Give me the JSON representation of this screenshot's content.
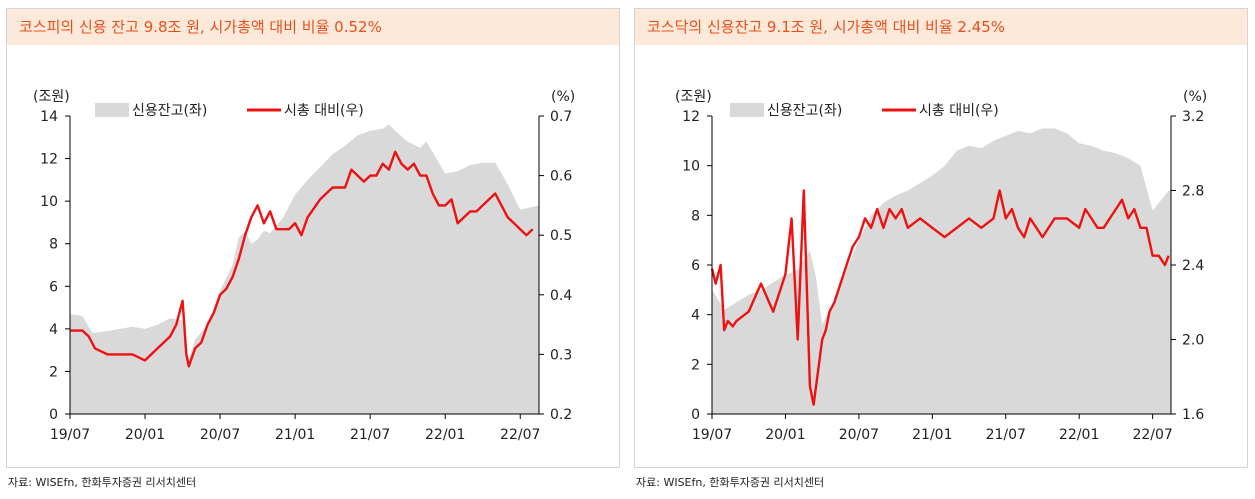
{
  "colors": {
    "title_text": "#e8501b",
    "title_bg": "#fde9da",
    "area_fill": "#d9d9d9",
    "line": "#ee1111",
    "axis": "#000000"
  },
  "chart_data": [
    {
      "type": "area+line",
      "title": "코스피의 신용 잔고 9.8조 원, 시가총액 대비 비율 0.52%",
      "left_unit": "(조원)",
      "right_unit": "(%)",
      "left_ticks": [
        0,
        2,
        4,
        6,
        8,
        10,
        12,
        14
      ],
      "right_ticks": [
        "0.2",
        "0.3",
        "0.4",
        "0.5",
        "0.6",
        "0.7"
      ],
      "ylim_left": [
        0,
        14
      ],
      "ylim_right": [
        0.2,
        0.7
      ],
      "x_range": [
        0,
        37.5
      ],
      "x_ticks": [
        {
          "label": "19/07",
          "m": 0
        },
        {
          "label": "20/01",
          "m": 6
        },
        {
          "label": "20/07",
          "m": 12
        },
        {
          "label": "21/01",
          "m": 18
        },
        {
          "label": "21/07",
          "m": 24
        },
        {
          "label": "22/01",
          "m": 30
        },
        {
          "label": "22/07",
          "m": 36
        }
      ],
      "series": [
        {
          "name": "신용잔고(좌)",
          "type": "area",
          "axis": "left",
          "x": [
            0,
            1,
            1.8,
            3,
            4,
            5,
            6,
            7,
            8,
            9,
            9.5,
            10,
            11,
            12,
            13,
            13.5,
            14,
            14.5,
            15,
            15.5,
            16,
            17,
            18,
            19,
            20,
            21,
            22,
            23,
            24,
            25,
            25.5,
            26,
            27,
            28,
            28.5,
            29,
            30,
            31,
            32,
            33,
            34,
            35,
            36,
            37.5
          ],
          "values": [
            4.7,
            4.6,
            3.8,
            3.9,
            4.0,
            4.1,
            4.0,
            4.2,
            4.5,
            4.4,
            2.6,
            3.5,
            4.2,
            5.8,
            7.0,
            8.3,
            8.6,
            8.0,
            8.2,
            8.6,
            8.5,
            9.2,
            10.3,
            11.0,
            11.6,
            12.2,
            12.6,
            13.1,
            13.3,
            13.4,
            13.6,
            13.3,
            12.8,
            12.5,
            12.8,
            12.3,
            11.3,
            11.4,
            11.7,
            11.8,
            11.8,
            10.8,
            9.6,
            9.8
          ]
        },
        {
          "name": "시총 대비(우)",
          "type": "line",
          "axis": "right",
          "x": [
            0,
            1,
            1.5,
            2,
            3,
            4,
            5,
            6,
            7,
            8,
            8.5,
            9,
            9.3,
            9.5,
            10,
            10.5,
            11,
            11.5,
            12,
            12.5,
            13,
            13.5,
            14,
            14.5,
            15,
            15.5,
            16,
            16.5,
            17,
            17.5,
            18,
            18.5,
            19,
            20,
            21,
            22,
            22.5,
            23,
            23.5,
            24,
            24.5,
            25,
            25.5,
            26,
            26.5,
            27,
            27.5,
            28,
            28.5,
            29,
            29.5,
            30,
            30.5,
            31,
            31.5,
            32,
            32.5,
            33,
            33.5,
            34,
            34.5,
            35,
            35.5,
            36,
            36.5,
            37
          ],
          "values": [
            0.34,
            0.34,
            0.33,
            0.31,
            0.3,
            0.3,
            0.3,
            0.29,
            0.31,
            0.33,
            0.35,
            0.39,
            0.3,
            0.28,
            0.31,
            0.32,
            0.35,
            0.37,
            0.4,
            0.41,
            0.43,
            0.46,
            0.5,
            0.53,
            0.55,
            0.52,
            0.54,
            0.51,
            0.51,
            0.51,
            0.52,
            0.5,
            0.53,
            0.56,
            0.58,
            0.58,
            0.61,
            0.6,
            0.59,
            0.6,
            0.6,
            0.62,
            0.61,
            0.64,
            0.62,
            0.61,
            0.62,
            0.6,
            0.6,
            0.57,
            0.55,
            0.55,
            0.56,
            0.52,
            0.53,
            0.54,
            0.54,
            0.55,
            0.56,
            0.57,
            0.55,
            0.53,
            0.52,
            0.51,
            0.5,
            0.51
          ]
        }
      ]
    },
    {
      "type": "area+line",
      "title": "코스닥의 신용잔고 9.1조 원, 시가총액 대비 비율 2.45%",
      "left_unit": "(조원)",
      "right_unit": "(%)",
      "left_ticks": [
        0,
        2,
        4,
        6,
        8,
        10,
        12
      ],
      "right_ticks": [
        "1.6",
        "2.0",
        "2.4",
        "2.8",
        "3.2"
      ],
      "ylim_left": [
        0,
        12
      ],
      "ylim_right": [
        1.6,
        3.2
      ],
      "x_range": [
        0,
        37.5
      ],
      "x_ticks": [
        {
          "label": "19/07",
          "m": 0
        },
        {
          "label": "20/01",
          "m": 6
        },
        {
          "label": "20/07",
          "m": 12
        },
        {
          "label": "21/01",
          "m": 18
        },
        {
          "label": "21/07",
          "m": 24
        },
        {
          "label": "22/01",
          "m": 30
        },
        {
          "label": "22/07",
          "m": 36
        }
      ],
      "series": [
        {
          "name": "신용잔고(좌)",
          "type": "area",
          "axis": "left",
          "x": [
            0,
            1,
            2,
            3,
            4,
            5,
            6,
            7,
            8,
            8.5,
            9,
            10,
            11,
            12,
            13,
            14,
            15,
            16,
            17,
            18,
            19,
            20,
            21,
            22,
            23,
            24,
            25,
            26,
            27,
            28,
            29,
            30,
            31,
            32,
            33,
            34,
            35,
            36,
            37,
            37.5
          ],
          "values": [
            5.0,
            4.2,
            4.5,
            4.8,
            5.0,
            5.3,
            5.6,
            5.8,
            6.6,
            5.5,
            3.6,
            4.6,
            5.8,
            7.0,
            8.0,
            8.5,
            8.8,
            9.0,
            9.3,
            9.6,
            10.0,
            10.6,
            10.8,
            10.7,
            11.0,
            11.2,
            11.4,
            11.3,
            11.5,
            11.5,
            11.3,
            10.9,
            10.8,
            10.6,
            10.5,
            10.3,
            10.0,
            8.2,
            8.8,
            9.1
          ]
        },
        {
          "name": "시총 대비(우)",
          "type": "line",
          "axis": "right",
          "x": [
            0,
            0.3,
            0.7,
            1,
            1.3,
            1.7,
            2,
            3,
            4,
            5,
            6,
            6.5,
            7,
            7.5,
            8,
            8.3,
            8.6,
            9,
            9.3,
            9.6,
            10,
            10.5,
            11,
            11.5,
            12,
            12.5,
            13,
            13.5,
            14,
            14.5,
            15,
            15.5,
            16,
            17,
            18,
            19,
            20,
            21,
            22,
            23,
            23.5,
            24,
            24.5,
            25,
            25.5,
            26,
            27,
            28,
            29,
            30,
            30.5,
            31,
            31.5,
            32,
            32.5,
            33,
            33.5,
            34,
            34.5,
            35,
            35.5,
            36,
            36.5,
            37,
            37.3
          ],
          "values": [
            2.38,
            2.3,
            2.4,
            2.05,
            2.1,
            2.07,
            2.1,
            2.15,
            2.3,
            2.15,
            2.35,
            2.65,
            2.0,
            2.8,
            1.75,
            1.65,
            1.8,
            2.0,
            2.05,
            2.15,
            2.2,
            2.3,
            2.4,
            2.5,
            2.55,
            2.65,
            2.6,
            2.7,
            2.6,
            2.7,
            2.65,
            2.7,
            2.6,
            2.65,
            2.6,
            2.55,
            2.6,
            2.65,
            2.6,
            2.65,
            2.8,
            2.65,
            2.7,
            2.6,
            2.55,
            2.65,
            2.55,
            2.65,
            2.65,
            2.6,
            2.7,
            2.65,
            2.6,
            2.6,
            2.65,
            2.7,
            2.75,
            2.65,
            2.7,
            2.6,
            2.6,
            2.45,
            2.45,
            2.4,
            2.45
          ]
        }
      ]
    }
  ],
  "source_text": "자료: WISEfn, 한화투자증권 리서치센터",
  "legend_area_label": "신용잔고(좌)",
  "legend_line_label": "시총 대비(우)"
}
